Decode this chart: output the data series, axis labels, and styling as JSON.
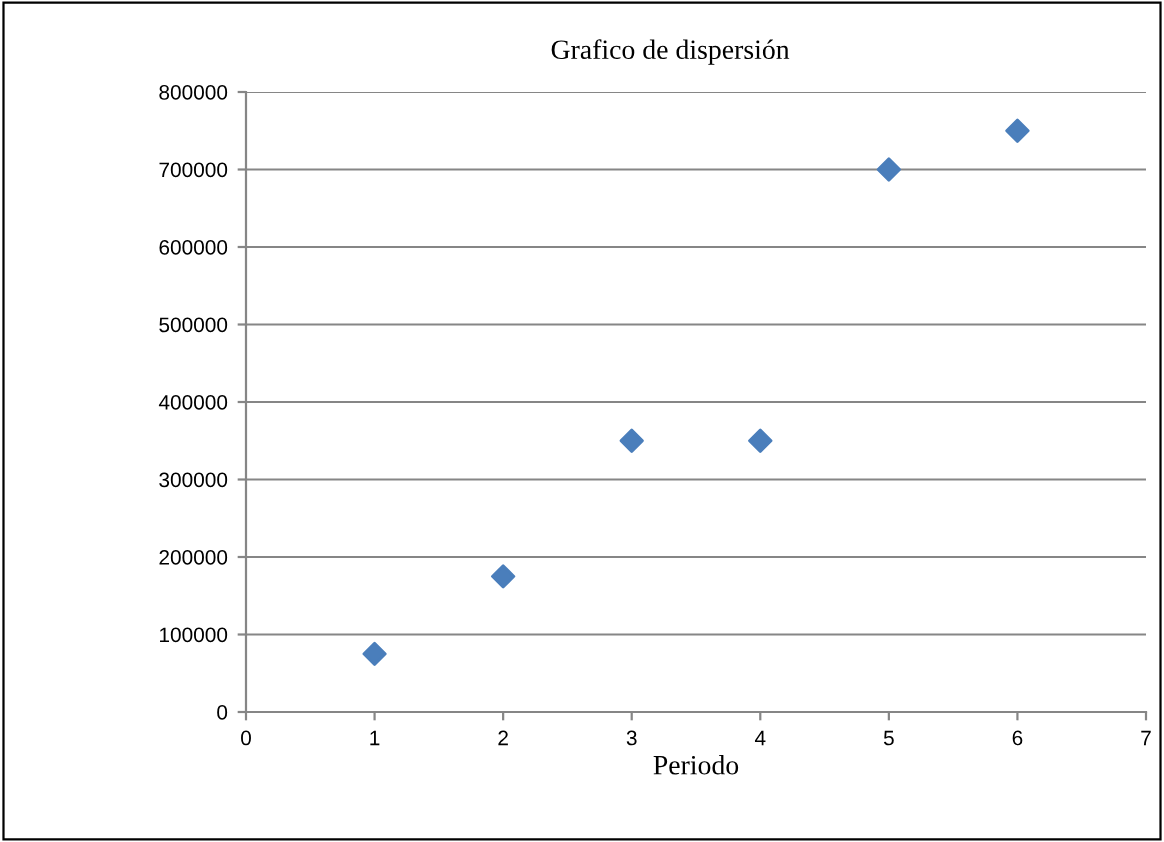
{
  "chart_data": {
    "type": "scatter",
    "title": "Grafico de dispersión",
    "xlabel": "Periodo",
    "x": [
      1,
      2,
      3,
      4,
      5,
      6
    ],
    "series": [
      {
        "color": "#4a7ebb",
        "values": [
          75000,
          175000,
          350000,
          350000,
          700000,
          750000
        ]
      }
    ],
    "xlim": [
      0,
      7
    ],
    "xticks": [
      0,
      1,
      2,
      3,
      4,
      5,
      6,
      7
    ],
    "ylim": [
      0,
      800000
    ],
    "yticks": [
      0,
      100000,
      200000,
      300000,
      400000,
      500000,
      600000,
      700000,
      800000
    ],
    "grid": "y",
    "marker": "diamond"
  }
}
